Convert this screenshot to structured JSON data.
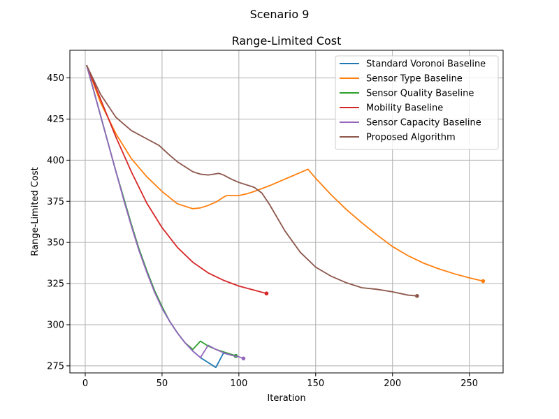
{
  "figure_title": "Scenario 9",
  "chart_data": {
    "type": "line",
    "title": "Range-Limited Cost",
    "xlabel": "Iteration",
    "ylabel": "Range-Limited Cost",
    "xlim": [
      -10,
      272
    ],
    "ylim": [
      270.7,
      466.8
    ],
    "xticks": [
      0,
      50,
      100,
      150,
      200,
      250
    ],
    "yticks": [
      275,
      300,
      325,
      350,
      375,
      400,
      425,
      450
    ],
    "grid": true,
    "legend_position": "top-right",
    "series": [
      {
        "name": "Standard Voronoi Baseline",
        "color": "#1f77b4",
        "end_marker": true,
        "points": [
          [
            1,
            457.5
          ],
          [
            5,
            444
          ],
          [
            10,
            427
          ],
          [
            15,
            410
          ],
          [
            20,
            393
          ],
          [
            25,
            377
          ],
          [
            30,
            361
          ],
          [
            35,
            346
          ],
          [
            40,
            333
          ],
          [
            45,
            321
          ],
          [
            50,
            310
          ],
          [
            55,
            302
          ],
          [
            60,
            295
          ],
          [
            65,
            289
          ],
          [
            70,
            284
          ],
          [
            75,
            280
          ],
          [
            80,
            277
          ],
          [
            85,
            274
          ],
          [
            90,
            282.8
          ],
          [
            95,
            281.5
          ],
          [
            98,
            281
          ]
        ]
      },
      {
        "name": "Sensor Type Baseline",
        "color": "#ff7f0e",
        "end_marker": true,
        "points": [
          [
            1,
            457.5
          ],
          [
            10,
            435
          ],
          [
            20,
            416
          ],
          [
            30,
            401
          ],
          [
            40,
            390
          ],
          [
            50,
            381
          ],
          [
            60,
            373.5
          ],
          [
            70,
            370.5
          ],
          [
            75,
            371
          ],
          [
            80,
            372.5
          ],
          [
            85,
            374.5
          ],
          [
            90,
            377.5
          ],
          [
            92,
            378.5
          ],
          [
            100,
            378.5
          ],
          [
            105,
            379.5
          ],
          [
            110,
            381
          ],
          [
            120,
            384.5
          ],
          [
            130,
            388.5
          ],
          [
            140,
            392.5
          ],
          [
            145,
            394.5
          ],
          [
            150,
            389
          ],
          [
            160,
            379
          ],
          [
            170,
            370
          ],
          [
            180,
            362
          ],
          [
            190,
            354.5
          ],
          [
            200,
            347.5
          ],
          [
            210,
            342
          ],
          [
            220,
            337.5
          ],
          [
            230,
            334
          ],
          [
            240,
            331
          ],
          [
            250,
            328.5
          ],
          [
            259,
            326.5
          ]
        ]
      },
      {
        "name": "Sensor Quality Baseline",
        "color": "#2ca02c",
        "end_marker": true,
        "points": [
          [
            1,
            457.5
          ],
          [
            5,
            444
          ],
          [
            10,
            427
          ],
          [
            15,
            410
          ],
          [
            20,
            393
          ],
          [
            25,
            377
          ],
          [
            30,
            361
          ],
          [
            35,
            346
          ],
          [
            40,
            333
          ],
          [
            45,
            321
          ],
          [
            50,
            311
          ],
          [
            55,
            302
          ],
          [
            60,
            295
          ],
          [
            65,
            289
          ],
          [
            70,
            285
          ],
          [
            75,
            290
          ],
          [
            80,
            287
          ],
          [
            85,
            285
          ],
          [
            90,
            283.5
          ],
          [
            95,
            282
          ],
          [
            98,
            281
          ]
        ]
      },
      {
        "name": "Mobility Baseline",
        "color": "#d62728",
        "end_marker": true,
        "points": [
          [
            1,
            457.5
          ],
          [
            10,
            437
          ],
          [
            20,
            414
          ],
          [
            30,
            393
          ],
          [
            40,
            374
          ],
          [
            50,
            359
          ],
          [
            60,
            347
          ],
          [
            70,
            338
          ],
          [
            80,
            331.5
          ],
          [
            90,
            327
          ],
          [
            100,
            323.5
          ],
          [
            110,
            321
          ],
          [
            118,
            319
          ]
        ]
      },
      {
        "name": "Sensor Capacity Baseline",
        "color": "#9467bd",
        "end_marker": true,
        "points": [
          [
            1,
            457.5
          ],
          [
            5,
            444
          ],
          [
            10,
            427
          ],
          [
            15,
            410
          ],
          [
            20,
            393
          ],
          [
            25,
            376
          ],
          [
            30,
            360
          ],
          [
            35,
            345
          ],
          [
            40,
            332
          ],
          [
            45,
            320
          ],
          [
            50,
            310
          ],
          [
            55,
            302
          ],
          [
            60,
            295
          ],
          [
            65,
            289
          ],
          [
            70,
            284
          ],
          [
            75,
            280
          ],
          [
            80,
            287.5
          ],
          [
            85,
            285
          ],
          [
            90,
            283
          ],
          [
            95,
            281.5
          ],
          [
            100,
            280.5
          ],
          [
            103,
            279.5
          ]
        ]
      },
      {
        "name": "Proposed Algorithm",
        "color": "#8c564b",
        "end_marker": true,
        "points": [
          [
            1,
            457.5
          ],
          [
            10,
            440
          ],
          [
            20,
            426
          ],
          [
            30,
            418
          ],
          [
            40,
            413
          ],
          [
            48,
            409
          ],
          [
            55,
            403
          ],
          [
            60,
            399
          ],
          [
            70,
            393
          ],
          [
            75,
            391.5
          ],
          [
            80,
            391
          ],
          [
            87,
            392
          ],
          [
            90,
            391
          ],
          [
            95,
            388.5
          ],
          [
            100,
            386.5
          ],
          [
            110,
            383.5
          ],
          [
            115,
            380
          ],
          [
            120,
            373
          ],
          [
            130,
            357
          ],
          [
            140,
            344
          ],
          [
            150,
            335
          ],
          [
            160,
            329.5
          ],
          [
            170,
            325.5
          ],
          [
            180,
            322.5
          ],
          [
            190,
            321.5
          ],
          [
            200,
            320
          ],
          [
            210,
            318
          ],
          [
            216,
            317.5
          ]
        ]
      }
    ]
  }
}
